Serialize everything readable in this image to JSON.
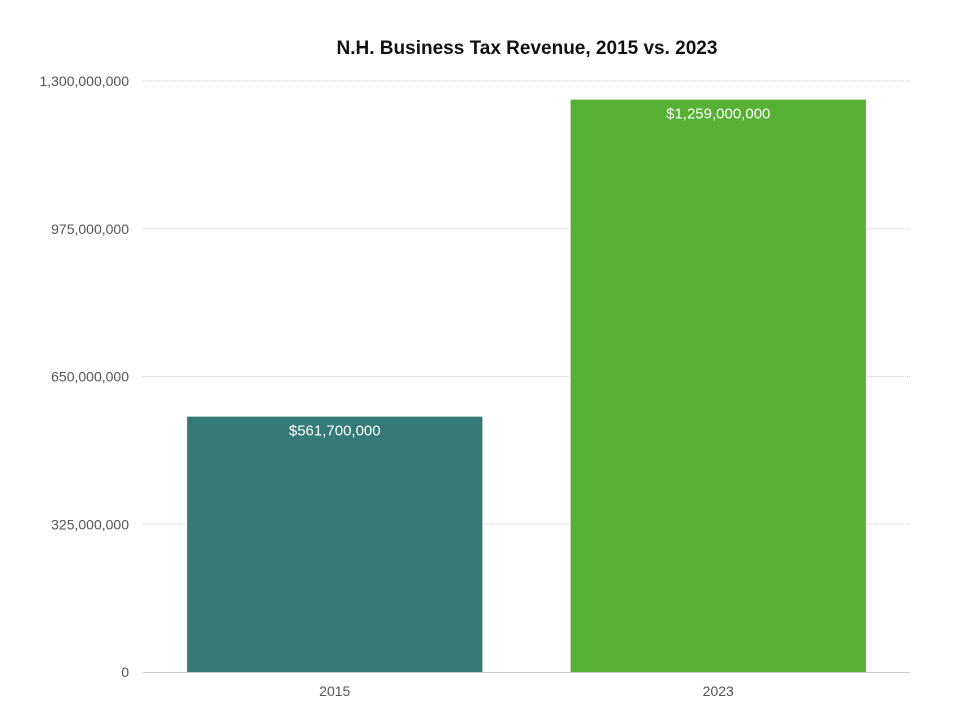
{
  "chart_data": {
    "type": "bar",
    "title": "N.H. Business Tax Revenue, 2015 vs. 2023",
    "xlabel": "",
    "ylabel": "",
    "categories": [
      "2015",
      "2023"
    ],
    "values": [
      561700000,
      1259000000
    ],
    "data_labels": [
      "$561,700,000",
      "$1,259,000,000"
    ],
    "colors": [
      "#357a75",
      "#55b033"
    ],
    "ylim": [
      0,
      1300000000
    ],
    "yticks": [
      0,
      325000000,
      650000000,
      975000000,
      1300000000
    ],
    "ytick_labels": [
      "0",
      "325,000,000",
      "650,000,000",
      "975,000,000",
      "1,300,000,000"
    ],
    "grid": true,
    "legend": "none"
  }
}
